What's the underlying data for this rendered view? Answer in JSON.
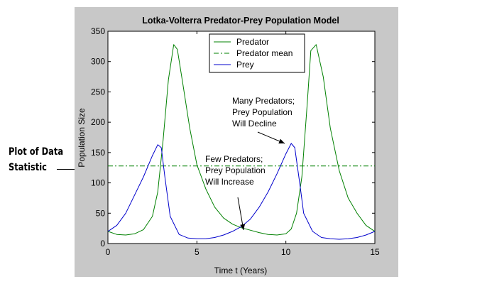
{
  "chart_data": {
    "type": "line",
    "title": "Lotka-Volterra Predator-Prey Population Model",
    "xlabel": "Time t (Years)",
    "ylabel": "Population Size",
    "xlim": [
      0,
      15
    ],
    "ylim": [
      0,
      350
    ],
    "xticks": [
      "0",
      "5",
      "10",
      "15"
    ],
    "yticks": [
      "0",
      "50",
      "100",
      "150",
      "200",
      "250",
      "300",
      "350"
    ],
    "legend_position": "top-center",
    "grid": false,
    "series": [
      {
        "name": "Predator",
        "color": "#008000",
        "style": "solid",
        "x": [
          0,
          0.5,
          1,
          1.5,
          2,
          2.5,
          2.8,
          3.1,
          3.4,
          3.7,
          3.9,
          4.2,
          4.6,
          5,
          5.5,
          6,
          6.5,
          7,
          7.5,
          8,
          8.5,
          9,
          9.5,
          10,
          10.3,
          10.6,
          10.9,
          11.2,
          11.4,
          11.7,
          12.1,
          12.5,
          13,
          13.5,
          14,
          14.5,
          15
        ],
        "y": [
          20,
          15,
          14,
          16,
          23,
          45,
          85,
          170,
          270,
          328,
          320,
          265,
          190,
          130,
          90,
          60,
          42,
          32,
          26,
          22,
          18,
          15,
          14,
          16,
          24,
          50,
          110,
          230,
          318,
          328,
          275,
          190,
          120,
          75,
          50,
          30,
          20
        ]
      },
      {
        "name": "Predator mean",
        "color": "#008000",
        "style": "dashdot",
        "x": [
          0,
          15
        ],
        "y": [
          128,
          128
        ]
      },
      {
        "name": "Prey",
        "color": "#0000cc",
        "style": "solid",
        "x": [
          0,
          0.5,
          1,
          1.5,
          2,
          2.5,
          2.8,
          3.0,
          3.2,
          3.5,
          4,
          4.5,
          5,
          5.5,
          6,
          6.5,
          7,
          7.5,
          8,
          8.5,
          9,
          9.5,
          10,
          10.3,
          10.5,
          10.8,
          11,
          11.5,
          12,
          12.5,
          13,
          13.5,
          14,
          14.5,
          15
        ],
        "y": [
          20,
          30,
          50,
          80,
          110,
          145,
          163,
          158,
          110,
          45,
          15,
          9,
          8,
          8,
          10,
          14,
          20,
          28,
          40,
          60,
          85,
          115,
          148,
          165,
          158,
          95,
          50,
          20,
          10,
          8,
          7,
          8,
          10,
          14,
          20
        ]
      }
    ],
    "annotations": [
      {
        "lines": [
          "Many Predators;",
          "Prey Population",
          "Will Decline"
        ]
      },
      {
        "lines": [
          "Few Predators;",
          "Prey Population",
          "Will Increase"
        ]
      }
    ]
  },
  "callout": {
    "line1": "Plot of Data",
    "line2": "Statistic"
  }
}
